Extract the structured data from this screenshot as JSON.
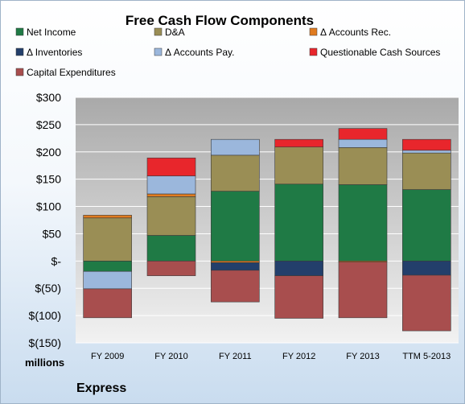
{
  "chart_data": {
    "type": "bar",
    "stacked": true,
    "title": "Free Cash Flow Components",
    "units_label": "millions",
    "company": "Express",
    "ylim": [
      -150,
      300
    ],
    "yticks": [
      300,
      250,
      200,
      150,
      100,
      50,
      0,
      -50,
      -100,
      -150
    ],
    "ytick_labels": [
      "$300",
      "$250",
      "$200",
      "$150",
      "$100",
      "$50",
      "$-",
      "$(50)",
      "$(100)",
      "$(150)"
    ],
    "categories": [
      "FY 2009",
      "FY 2010",
      "FY 2011",
      "FY 2012",
      "FY 2013",
      "TTM 5-2013"
    ],
    "grid": true,
    "legend_position": "top",
    "series": [
      {
        "name": "Net Income",
        "color": "#1f7a45",
        "values": [
          -19,
          47,
          128,
          141,
          140,
          131
        ]
      },
      {
        "name": "D&A",
        "color": "#9a8e55",
        "values": [
          79,
          71,
          66,
          68,
          68,
          67
        ]
      },
      {
        "name": "Δ Accounts Rec.",
        "color": "#e07b1f",
        "values": [
          5,
          5,
          -3,
          0,
          -2,
          0
        ]
      },
      {
        "name": "Δ Inventories",
        "color": "#233f6b",
        "values": [
          0,
          0,
          -14,
          -27,
          0,
          -26
        ]
      },
      {
        "name": "Δ Accounts Pay.",
        "color": "#9bb7dc",
        "values": [
          -32,
          33,
          29,
          0,
          15,
          5
        ]
      },
      {
        "name": "Questionable Cash Sources",
        "color": "#e8262c",
        "values": [
          0,
          33,
          0,
          14,
          20,
          20
        ]
      },
      {
        "name": "Capital Expenditures",
        "color": "#a84e4e",
        "values": [
          -53,
          -27,
          -58,
          -78,
          -102,
          -102
        ]
      }
    ]
  }
}
